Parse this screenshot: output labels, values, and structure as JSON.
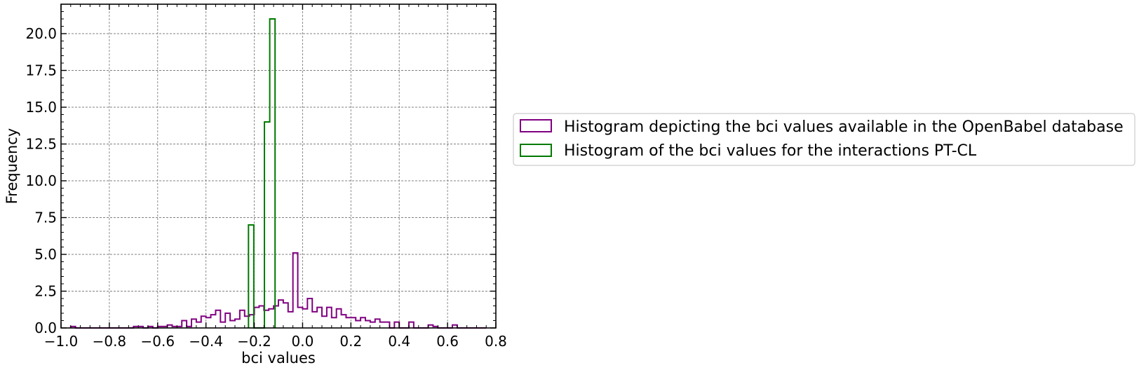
{
  "chart_data": {
    "type": "histogram",
    "xlabel": "bci values",
    "ylabel": "Frequency",
    "xlim": [
      -1.0,
      0.8
    ],
    "ylim": [
      0,
      22
    ],
    "x_ticks": [
      -1.0,
      -0.8,
      -0.6,
      -0.4,
      -0.2,
      0.0,
      0.2,
      0.4,
      0.6,
      0.8
    ],
    "x_tick_labels": [
      "−1.0",
      "−0.8",
      "−0.6",
      "−0.4",
      "−0.2",
      "0.0",
      "0.2",
      "0.4",
      "0.6",
      "0.8"
    ],
    "y_ticks": [
      0.0,
      2.5,
      5.0,
      7.5,
      10.0,
      12.5,
      15.0,
      17.5,
      20.0
    ],
    "y_tick_labels": [
      "0.0",
      "2.5",
      "5.0",
      "7.5",
      "10.0",
      "12.5",
      "15.0",
      "17.5",
      "20.0"
    ],
    "grid": true,
    "legend_position": "right",
    "series": [
      {
        "name": "Histogram depicting the bci values available in the OpenBabel database",
        "color": "#800080",
        "bin_start": -0.96,
        "bin_width": 0.02,
        "values": [
          0.1,
          0.0,
          0.0,
          0.0,
          0.0,
          0.0,
          0.0,
          0.0,
          0.0,
          0.0,
          0.0,
          0.0,
          0.0,
          0.1,
          0.1,
          0.0,
          0.1,
          0.0,
          0.1,
          0.1,
          0.2,
          0.1,
          0.1,
          0.5,
          0.1,
          0.6,
          0.4,
          0.8,
          0.7,
          0.9,
          1.2,
          0.4,
          1.0,
          0.5,
          0.6,
          1.2,
          0.8,
          0.9,
          1.4,
          1.5,
          1.2,
          1.3,
          1.5,
          1.9,
          1.7,
          1.1,
          5.1,
          1.4,
          1.3,
          2.0,
          1.1,
          1.4,
          0.8,
          1.4,
          0.7,
          1.3,
          0.9,
          0.7,
          0.7,
          0.5,
          0.7,
          0.5,
          0.4,
          0.6,
          0.4,
          0.4,
          0.0,
          0.4,
          0.0,
          0.0,
          0.4,
          0.0,
          0.0,
          0.0,
          0.2,
          0.1,
          0.0,
          0.0,
          0.0,
          0.2,
          0.0,
          0.0,
          0.0,
          0.0,
          0.0,
          0.0
        ]
      },
      {
        "name": "Histogram of the bci values for the interactions PT-CL",
        "color": "#007a00",
        "bin_start": -0.224,
        "bin_width": 0.022,
        "values": [
          7.0,
          0.0,
          0.0,
          14.0,
          21.0
        ]
      }
    ]
  }
}
